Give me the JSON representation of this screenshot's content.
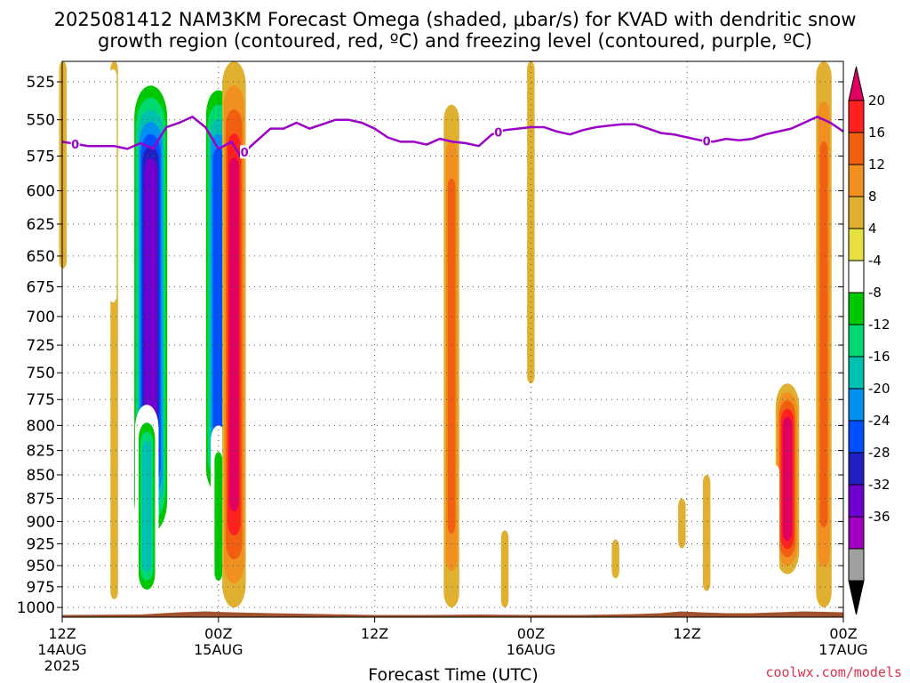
{
  "title": {
    "line1": "2025081412 NAM3KM Forecast Omega (shaded, μbar/s) for KVAD with dendritic snow",
    "line2": "growth region (contoured, red, ºC) and freezing level (contoured, purple, ºC)"
  },
  "credit": "coolwx.com/models",
  "chart_data": {
    "type": "heatmap",
    "title": "2025081412 NAM3KM Forecast Omega (shaded, μbar/s) for KVAD with dendritic snow growth region (contoured, red, ºC) and freezing level (contoured, purple, ºC)",
    "xlabel": "Forecast Time (UTC)",
    "ylabel": "",
    "x_range_hours": [
      0,
      60
    ],
    "y_log_pressure": true,
    "ylim": [
      1012,
      512
    ],
    "grid": true,
    "y_ticks": [
      "525",
      "550",
      "575",
      "600",
      "625",
      "650",
      "675",
      "700",
      "725",
      "750",
      "775",
      "800",
      "825",
      "850",
      "875",
      "900",
      "925",
      "950",
      "975",
      "1000"
    ],
    "x_ticks": [
      {
        "hour": 0,
        "label": "12Z",
        "sub": "14AUG",
        "sub2": "2025"
      },
      {
        "hour": 12,
        "label": "00Z",
        "sub": "15AUG",
        "sub2": ""
      },
      {
        "hour": 24,
        "label": "12Z",
        "sub": "",
        "sub2": ""
      },
      {
        "hour": 36,
        "label": "00Z",
        "sub": "16AUG",
        "sub2": ""
      },
      {
        "hour": 48,
        "label": "12Z",
        "sub": "",
        "sub2": ""
      },
      {
        "hour": 60,
        "label": "00Z",
        "sub": "17AUG",
        "sub2": ""
      }
    ],
    "colorbar": {
      "unit": "μbar/s",
      "labels": [
        "20",
        "16",
        "12",
        "8",
        "4",
        "-4",
        "-8",
        "-12",
        "-16",
        "-20",
        "-24",
        "-28",
        "-32",
        "-36"
      ],
      "colors": [
        "#e0005f",
        "#ff2020",
        "#f06010",
        "#f09020",
        "#e0b030",
        "#e8e040",
        "#ffffff",
        "#00c800",
        "#00d870",
        "#00c0b0",
        "#0090f0",
        "#0050ff",
        "#2020c0",
        "#7000d0",
        "#a000c0",
        "#a0a0a0",
        "#000000"
      ]
    },
    "freezing_level": {
      "label": "0",
      "color": "#9b00c8",
      "points": [
        [
          0,
          565
        ],
        [
          2,
          568
        ],
        [
          4,
          568
        ],
        [
          5,
          570
        ],
        [
          6,
          566
        ],
        [
          7,
          570
        ],
        [
          7.5,
          562
        ],
        [
          8,
          555
        ],
        [
          9,
          552
        ],
        [
          10,
          548
        ],
        [
          11,
          555
        ],
        [
          12,
          570
        ],
        [
          13,
          565
        ],
        [
          13.7,
          575
        ],
        [
          14.5,
          568
        ],
        [
          16,
          556
        ],
        [
          17,
          556
        ],
        [
          18,
          552
        ],
        [
          19,
          556
        ],
        [
          20,
          553
        ],
        [
          21,
          550
        ],
        [
          22,
          550
        ],
        [
          23,
          552
        ],
        [
          24,
          556
        ],
        [
          25,
          562
        ],
        [
          26,
          565
        ],
        [
          27,
          565
        ],
        [
          28,
          567
        ],
        [
          29,
          563
        ],
        [
          30,
          565
        ],
        [
          31,
          566
        ],
        [
          32,
          568
        ],
        [
          33,
          560
        ],
        [
          34,
          557
        ],
        [
          35,
          556
        ],
        [
          36,
          555
        ],
        [
          37,
          555
        ],
        [
          38,
          558
        ],
        [
          39,
          560
        ],
        [
          40,
          557
        ],
        [
          41,
          555
        ],
        [
          42,
          554
        ],
        [
          43,
          553
        ],
        [
          44,
          553
        ],
        [
          45,
          556
        ],
        [
          46,
          559
        ],
        [
          47,
          560
        ],
        [
          48,
          562
        ],
        [
          49,
          564
        ],
        [
          50,
          565
        ],
        [
          51,
          563
        ],
        [
          52,
          564
        ],
        [
          53,
          563
        ],
        [
          54,
          560
        ],
        [
          55,
          558
        ],
        [
          56,
          556
        ],
        [
          57,
          552
        ],
        [
          58,
          548
        ],
        [
          59,
          552
        ],
        [
          60,
          558
        ]
      ],
      "label_hours": [
        1,
        14,
        33.5,
        49.5
      ]
    },
    "omega_features": [
      {
        "hour": 0.05,
        "p_top": 512,
        "p_bottom": 660,
        "peak": 6
      },
      {
        "hour": 4.0,
        "p_top": 512,
        "p_bottom": 990,
        "peak": 7
      },
      {
        "hour": 6.8,
        "p_top": 512,
        "p_bottom": 940,
        "peak": -36
      },
      {
        "hour": 6.5,
        "p_top": 780,
        "p_bottom": 1000,
        "peak": -20
      },
      {
        "hour": 12.0,
        "p_top": 512,
        "p_bottom": 900,
        "peak": -28
      },
      {
        "hour": 12.0,
        "p_top": 800,
        "p_bottom": 1000,
        "peak": -12
      },
      {
        "hour": 13.2,
        "p_top": 512,
        "p_bottom": 1000,
        "peak": 20
      },
      {
        "hour": 29.9,
        "p_top": 540,
        "p_bottom": 1000,
        "peak": 12
      },
      {
        "hour": 36.0,
        "p_top": 512,
        "p_bottom": 760,
        "peak": 6
      },
      {
        "hour": 34.0,
        "p_top": 910,
        "p_bottom": 1000,
        "peak": 5
      },
      {
        "hour": 55.7,
        "p_top": 760,
        "p_bottom": 960,
        "peak": 20
      },
      {
        "hour": 58.5,
        "p_top": 512,
        "p_bottom": 1000,
        "peak": 12
      },
      {
        "hour": 57.3,
        "p_top": 900,
        "p_bottom": 990,
        "peak": -8
      },
      {
        "hour": 54.8,
        "p_top": 840,
        "p_bottom": 980,
        "peak": -6
      },
      {
        "hour": 50.5,
        "p_top": 840,
        "p_bottom": 990,
        "peak": -6
      },
      {
        "hour": 49.5,
        "p_top": 850,
        "p_bottom": 980,
        "peak": 5
      },
      {
        "hour": 47.6,
        "p_top": 875,
        "p_bottom": 930,
        "peak": 5
      },
      {
        "hour": 42.5,
        "p_top": 920,
        "p_bottom": 965,
        "peak": 5
      },
      {
        "hour": 41.6,
        "p_top": 935,
        "p_bottom": 945,
        "peak": -6
      },
      {
        "hour": 3.9,
        "p_top": 517,
        "p_bottom": 688,
        "peak": -6
      },
      {
        "hour": 56.2,
        "p_top": 512,
        "p_bottom": 590,
        "peak": -6
      }
    ],
    "terrain_color": "#a0522d"
  }
}
